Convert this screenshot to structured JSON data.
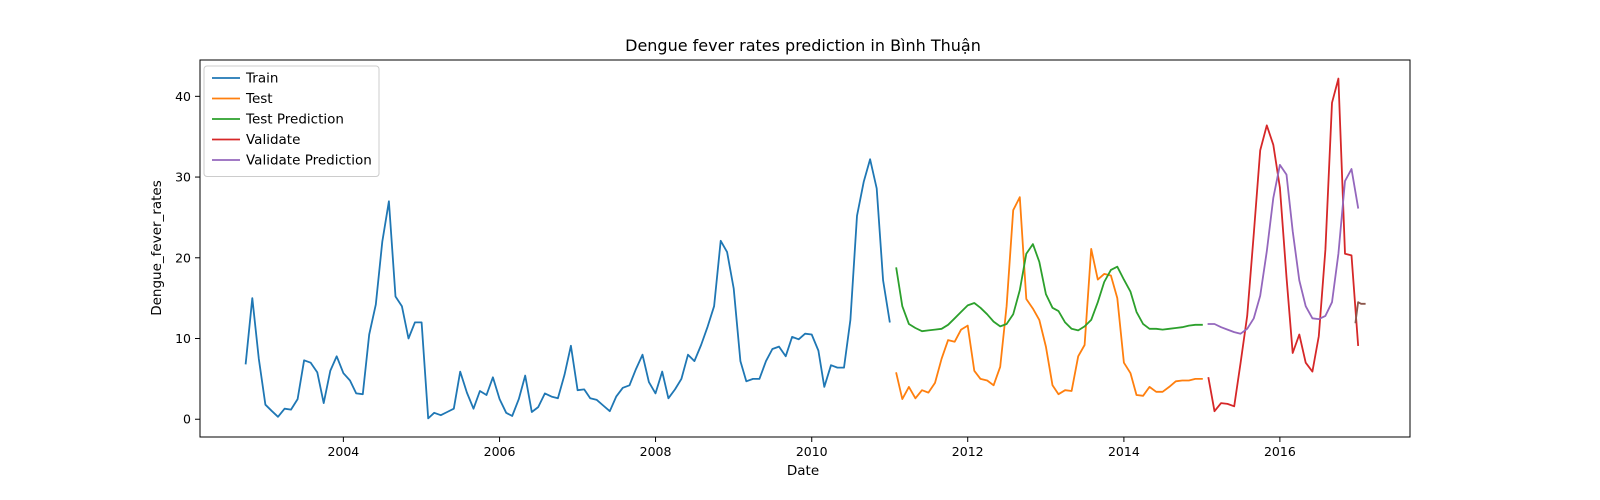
{
  "chart_data": {
    "type": "line",
    "title": "Dengue fever rates prediction in Bình Thuận",
    "xlabel": "Date",
    "ylabel": "Dengue_fever_rates",
    "xlim": [
      "2002-03-01",
      "2017-09-01"
    ],
    "ylim": [
      -2.2,
      44.5
    ],
    "x_ticks": [
      "2004",
      "2006",
      "2008",
      "2010",
      "2012",
      "2014",
      "2016"
    ],
    "y_ticks": [
      0,
      10,
      20,
      30,
      40
    ],
    "grid": false,
    "legend_position": "top-left",
    "series": [
      {
        "name": "Train",
        "color": "#1f77b4",
        "points": [
          [
            "2002-10-01",
            6.9
          ],
          [
            "2002-11-01",
            15.0
          ],
          [
            "2002-12-01",
            7.5
          ],
          [
            "2003-01-01",
            1.8
          ],
          [
            "2003-02-01",
            1.0
          ],
          [
            "2003-03-01",
            0.3
          ],
          [
            "2003-04-01",
            1.3
          ],
          [
            "2003-05-01",
            1.2
          ],
          [
            "2003-06-01",
            2.5
          ],
          [
            "2003-07-01",
            7.3
          ],
          [
            "2003-08-01",
            7.0
          ],
          [
            "2003-09-01",
            5.8
          ],
          [
            "2003-10-01",
            2.0
          ],
          [
            "2003-11-01",
            6.0
          ],
          [
            "2003-12-01",
            7.8
          ],
          [
            "2004-01-01",
            5.7
          ],
          [
            "2004-02-01",
            4.8
          ],
          [
            "2004-03-01",
            3.2
          ],
          [
            "2004-04-01",
            3.1
          ],
          [
            "2004-05-01",
            10.5
          ],
          [
            "2004-06-01",
            14.2
          ],
          [
            "2004-07-01",
            22.0
          ],
          [
            "2004-08-01",
            27.0
          ],
          [
            "2004-09-01",
            15.2
          ],
          [
            "2004-10-01",
            14.0
          ],
          [
            "2004-11-01",
            10.0
          ],
          [
            "2004-12-01",
            12.0
          ],
          [
            "2005-01-01",
            12.0
          ],
          [
            "2005-02-01",
            0.1
          ],
          [
            "2005-03-01",
            0.8
          ],
          [
            "2005-04-01",
            0.5
          ],
          [
            "2005-05-01",
            0.9
          ],
          [
            "2005-06-01",
            1.3
          ],
          [
            "2005-07-01",
            5.9
          ],
          [
            "2005-08-01",
            3.3
          ],
          [
            "2005-09-01",
            1.3
          ],
          [
            "2005-10-01",
            3.5
          ],
          [
            "2005-11-01",
            3.0
          ],
          [
            "2005-12-01",
            5.2
          ],
          [
            "2006-01-01",
            2.5
          ],
          [
            "2006-02-01",
            0.8
          ],
          [
            "2006-03-01",
            0.4
          ],
          [
            "2006-04-01",
            2.5
          ],
          [
            "2006-05-01",
            5.4
          ],
          [
            "2006-06-01",
            0.9
          ],
          [
            "2006-07-01",
            1.5
          ],
          [
            "2006-08-01",
            3.2
          ],
          [
            "2006-09-01",
            2.8
          ],
          [
            "2006-10-01",
            2.6
          ],
          [
            "2006-11-01",
            5.5
          ],
          [
            "2006-12-01",
            9.1
          ],
          [
            "2007-01-01",
            3.6
          ],
          [
            "2007-02-01",
            3.7
          ],
          [
            "2007-03-01",
            2.6
          ],
          [
            "2007-04-01",
            2.4
          ],
          [
            "2007-05-01",
            1.7
          ],
          [
            "2007-06-01",
            1.0
          ],
          [
            "2007-07-01",
            2.8
          ],
          [
            "2007-08-01",
            3.9
          ],
          [
            "2007-09-01",
            4.2
          ],
          [
            "2007-10-01",
            6.2
          ],
          [
            "2007-11-01",
            8.0
          ],
          [
            "2007-12-01",
            4.6
          ],
          [
            "2008-01-01",
            3.2
          ],
          [
            "2008-02-01",
            5.9
          ],
          [
            "2008-03-01",
            2.6
          ],
          [
            "2008-04-01",
            3.7
          ],
          [
            "2008-05-01",
            5.0
          ],
          [
            "2008-06-01",
            8.0
          ],
          [
            "2008-07-01",
            7.2
          ],
          [
            "2008-08-01",
            9.2
          ],
          [
            "2008-09-01",
            11.5
          ],
          [
            "2008-10-01",
            14.0
          ],
          [
            "2008-11-01",
            22.1
          ],
          [
            "2008-12-01",
            20.7
          ],
          [
            "2009-01-01",
            16.2
          ],
          [
            "2009-02-01",
            7.2
          ],
          [
            "2009-03-01",
            4.7
          ],
          [
            "2009-04-01",
            5.0
          ],
          [
            "2009-05-01",
            5.0
          ],
          [
            "2009-06-01",
            7.2
          ],
          [
            "2009-07-01",
            8.7
          ],
          [
            "2009-08-01",
            9.0
          ],
          [
            "2009-09-01",
            7.8
          ],
          [
            "2009-10-01",
            10.2
          ],
          [
            "2009-11-01",
            9.9
          ],
          [
            "2009-12-01",
            10.6
          ],
          [
            "2010-01-01",
            10.5
          ],
          [
            "2010-02-01",
            8.5
          ],
          [
            "2010-03-01",
            4.0
          ],
          [
            "2010-04-01",
            6.7
          ],
          [
            "2010-05-01",
            6.4
          ],
          [
            "2010-06-01",
            6.4
          ],
          [
            "2010-07-01",
            12.3
          ],
          [
            "2010-08-01",
            25.2
          ],
          [
            "2010-09-01",
            29.4
          ],
          [
            "2010-10-01",
            32.2
          ],
          [
            "2010-11-01",
            28.6
          ],
          [
            "2010-12-01",
            17.2
          ],
          [
            "2011-01-01",
            12.1
          ]
        ]
      },
      {
        "name": "Test",
        "color": "#ff7f0e",
        "points": [
          [
            "2011-02-01",
            5.7
          ],
          [
            "2011-03-01",
            2.5
          ],
          [
            "2011-04-01",
            4.0
          ],
          [
            "2011-05-01",
            2.6
          ],
          [
            "2011-06-01",
            3.6
          ],
          [
            "2011-07-01",
            3.3
          ],
          [
            "2011-08-01",
            4.5
          ],
          [
            "2011-09-01",
            7.5
          ],
          [
            "2011-10-01",
            9.8
          ],
          [
            "2011-11-01",
            9.6
          ],
          [
            "2011-12-01",
            11.1
          ],
          [
            "2012-01-01",
            11.6
          ],
          [
            "2012-02-01",
            6.0
          ],
          [
            "2012-03-01",
            5.0
          ],
          [
            "2012-04-01",
            4.8
          ],
          [
            "2012-05-01",
            4.2
          ],
          [
            "2012-06-01",
            6.5
          ],
          [
            "2012-07-01",
            14.0
          ],
          [
            "2012-08-01",
            25.9
          ],
          [
            "2012-09-01",
            27.5
          ],
          [
            "2012-10-01",
            14.9
          ],
          [
            "2012-11-01",
            13.7
          ],
          [
            "2012-12-01",
            12.3
          ],
          [
            "2013-01-01",
            9.0
          ],
          [
            "2013-02-01",
            4.2
          ],
          [
            "2013-03-01",
            3.1
          ],
          [
            "2013-04-01",
            3.6
          ],
          [
            "2013-05-01",
            3.5
          ],
          [
            "2013-06-01",
            7.8
          ],
          [
            "2013-07-01",
            9.2
          ],
          [
            "2013-08-01",
            21.1
          ],
          [
            "2013-09-01",
            17.3
          ],
          [
            "2013-10-01",
            18.0
          ],
          [
            "2013-11-01",
            17.8
          ],
          [
            "2013-12-01",
            15.0
          ],
          [
            "2014-01-01",
            7.0
          ],
          [
            "2014-02-01",
            5.7
          ],
          [
            "2014-03-01",
            3.0
          ],
          [
            "2014-04-01",
            2.9
          ],
          [
            "2014-05-01",
            4.0
          ],
          [
            "2014-06-01",
            3.4
          ],
          [
            "2014-07-01",
            3.4
          ],
          [
            "2014-08-01",
            4.0
          ],
          [
            "2014-09-01",
            4.7
          ],
          [
            "2014-10-01",
            4.8
          ],
          [
            "2014-11-01",
            4.8
          ],
          [
            "2014-12-01",
            5.0
          ],
          [
            "2015-01-01",
            5.0
          ]
        ]
      },
      {
        "name": "Test Prediction",
        "color": "#2ca02c",
        "points": [
          [
            "2011-02-01",
            18.7
          ],
          [
            "2011-03-01",
            14.0
          ],
          [
            "2011-04-01",
            11.8
          ],
          [
            "2011-05-01",
            11.3
          ],
          [
            "2011-06-01",
            10.9
          ],
          [
            "2011-07-01",
            11.0
          ],
          [
            "2011-08-01",
            11.1
          ],
          [
            "2011-09-01",
            11.2
          ],
          [
            "2011-10-01",
            11.7
          ],
          [
            "2011-11-01",
            12.5
          ],
          [
            "2011-12-01",
            13.3
          ],
          [
            "2012-01-01",
            14.1
          ],
          [
            "2012-02-01",
            14.4
          ],
          [
            "2012-03-01",
            13.8
          ],
          [
            "2012-04-01",
            13.0
          ],
          [
            "2012-05-01",
            12.1
          ],
          [
            "2012-06-01",
            11.5
          ],
          [
            "2012-07-01",
            11.8
          ],
          [
            "2012-08-01",
            13.0
          ],
          [
            "2012-09-01",
            16.0
          ],
          [
            "2012-10-01",
            20.5
          ],
          [
            "2012-11-01",
            21.7
          ],
          [
            "2012-12-01",
            19.5
          ],
          [
            "2013-01-01",
            15.5
          ],
          [
            "2013-02-01",
            13.8
          ],
          [
            "2013-03-01",
            13.4
          ],
          [
            "2013-04-01",
            12.0
          ],
          [
            "2013-05-01",
            11.2
          ],
          [
            "2013-06-01",
            11.0
          ],
          [
            "2013-07-01",
            11.5
          ],
          [
            "2013-08-01",
            12.3
          ],
          [
            "2013-09-01",
            14.5
          ],
          [
            "2013-10-01",
            17.0
          ],
          [
            "2013-11-01",
            18.5
          ],
          [
            "2013-12-01",
            18.9
          ],
          [
            "2014-01-01",
            17.3
          ],
          [
            "2014-02-01",
            15.8
          ],
          [
            "2014-03-01",
            13.3
          ],
          [
            "2014-04-01",
            11.8
          ],
          [
            "2014-05-01",
            11.2
          ],
          [
            "2014-06-01",
            11.2
          ],
          [
            "2014-07-01",
            11.1
          ],
          [
            "2014-08-01",
            11.2
          ],
          [
            "2014-09-01",
            11.3
          ],
          [
            "2014-10-01",
            11.4
          ],
          [
            "2014-11-01",
            11.6
          ],
          [
            "2014-12-01",
            11.7
          ],
          [
            "2015-01-01",
            11.7
          ]
        ]
      },
      {
        "name": "Validate",
        "color": "#d62728",
        "points": [
          [
            "2015-02-01",
            5.1
          ],
          [
            "2015-03-01",
            1.0
          ],
          [
            "2015-04-01",
            2.0
          ],
          [
            "2015-05-01",
            1.9
          ],
          [
            "2015-06-01",
            1.6
          ],
          [
            "2015-07-01",
            7.0
          ],
          [
            "2015-08-01",
            12.8
          ],
          [
            "2015-09-01",
            23.0
          ],
          [
            "2015-10-01",
            33.3
          ],
          [
            "2015-11-01",
            36.4
          ],
          [
            "2015-12-01",
            34.0
          ],
          [
            "2016-01-01",
            28.7
          ],
          [
            "2016-02-01",
            17.6
          ],
          [
            "2016-03-01",
            8.2
          ],
          [
            "2016-04-01",
            10.5
          ],
          [
            "2016-05-01",
            7.0
          ],
          [
            "2016-06-01",
            5.9
          ],
          [
            "2016-07-01",
            10.3
          ],
          [
            "2016-08-01",
            21.0
          ],
          [
            "2016-09-01",
            39.2
          ],
          [
            "2016-10-01",
            42.2
          ],
          [
            "2016-11-01",
            20.5
          ],
          [
            "2016-12-01",
            20.3
          ],
          [
            "2017-01-01",
            9.2
          ]
        ]
      },
      {
        "name": "Validate Prediction",
        "color": "#9467bd",
        "points": [
          [
            "2015-02-01",
            11.8
          ],
          [
            "2015-03-01",
            11.8
          ],
          [
            "2015-04-01",
            11.4
          ],
          [
            "2015-05-01",
            11.1
          ],
          [
            "2015-06-01",
            10.8
          ],
          [
            "2015-07-01",
            10.6
          ],
          [
            "2015-08-01",
            11.2
          ],
          [
            "2015-09-01",
            12.5
          ],
          [
            "2015-10-01",
            15.3
          ],
          [
            "2015-11-01",
            20.8
          ],
          [
            "2015-12-01",
            27.4
          ],
          [
            "2016-01-01",
            31.5
          ],
          [
            "2016-02-01",
            30.3
          ],
          [
            "2016-03-01",
            23.3
          ],
          [
            "2016-04-01",
            17.2
          ],
          [
            "2016-05-01",
            14.0
          ],
          [
            "2016-06-01",
            12.5
          ],
          [
            "2016-07-01",
            12.4
          ],
          [
            "2016-08-01",
            12.8
          ],
          [
            "2016-09-01",
            14.5
          ],
          [
            "2016-10-01",
            20.5
          ],
          [
            "2016-11-01",
            29.5
          ],
          [
            "2016-12-01",
            31.0
          ],
          [
            "2017-01-01",
            26.2
          ]
        ]
      },
      {
        "name": "",
        "color": "#8c564b",
        "points": [
          [
            "2016-12-20",
            12.0
          ],
          [
            "2017-01-01",
            14.5
          ],
          [
            "2017-01-15",
            14.3
          ],
          [
            "2017-02-01",
            14.3
          ]
        ]
      }
    ]
  }
}
